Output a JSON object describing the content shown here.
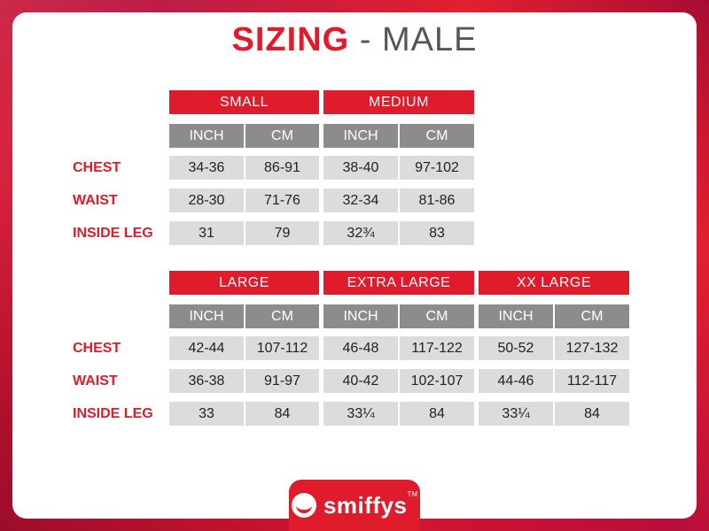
{
  "title": {
    "bold": "SIZING",
    "rest": " - MALE"
  },
  "row_labels": [
    "CHEST",
    "WAIST",
    "INSIDE LEG"
  ],
  "units": [
    "INCH",
    "CM"
  ],
  "sizes": {
    "small": {
      "name": "SMALL",
      "rows": [
        [
          "34-36",
          "86-91"
        ],
        [
          "28-30",
          "71-76"
        ],
        [
          "31",
          "79"
        ]
      ]
    },
    "medium": {
      "name": "MEDIUM",
      "rows": [
        [
          "38-40",
          "97-102"
        ],
        [
          "32-34",
          "81-86"
        ],
        [
          "32¾",
          "83"
        ]
      ]
    },
    "large": {
      "name": "LARGE",
      "rows": [
        [
          "42-44",
          "107-112"
        ],
        [
          "36-38",
          "91-97"
        ],
        [
          "33",
          "84"
        ]
      ]
    },
    "xl": {
      "name": "EXTRA LARGE",
      "rows": [
        [
          "46-48",
          "117-122"
        ],
        [
          "40-42",
          "102-107"
        ],
        [
          "33¼",
          "84"
        ]
      ]
    },
    "xxl": {
      "name": "XX LARGE",
      "rows": [
        [
          "50-52",
          "127-132"
        ],
        [
          "44-46",
          "112-117"
        ],
        [
          "33¼",
          "84"
        ]
      ]
    }
  },
  "logo": {
    "text": "smiffys",
    "tm": "TM"
  },
  "colors": {
    "accent": "#e01b2c",
    "unit_bg": "#8c8c8c",
    "cell_bg": "#dcdcdc"
  }
}
